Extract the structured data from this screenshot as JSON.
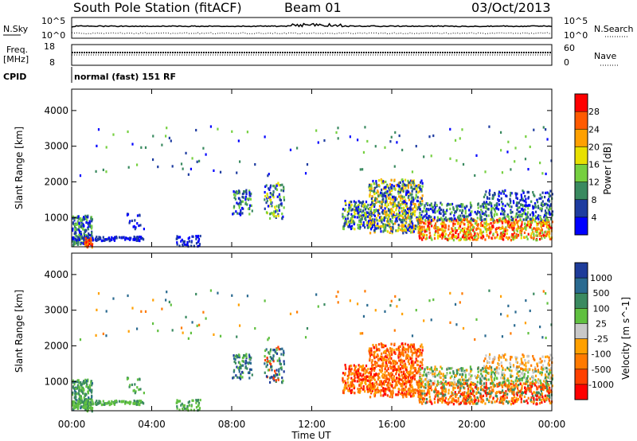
{
  "header": {
    "station": "South Pole Station (fitACF)",
    "beam": "Beam 01",
    "date": "03/Oct/2013"
  },
  "strips": {
    "nsky_label": "N.Sky",
    "nsky_ticks": [
      "10^5",
      "10^0"
    ],
    "nsearch_label": "N.Search",
    "nsearch_ticks": [
      "10^5",
      "10^0"
    ],
    "freq_label": "Freq.",
    "freq_unit": "[MHz]",
    "freq_ticks": [
      "18",
      "8"
    ],
    "nave_label": "Nave",
    "nave_ticks": [
      "60",
      "0"
    ],
    "cpid_label": "CPID",
    "cpid_value": "normal (fast) 151 RF"
  },
  "chart_data": [
    {
      "type": "heatmap",
      "parameter": "Power",
      "ylabel": "Slant Range [km]",
      "ylim": [
        180,
        4600
      ],
      "xlim": [
        0,
        24
      ],
      "yticks": [
        1000,
        2000,
        3000,
        4000
      ],
      "colorbar_label": "Power [dB]",
      "colorbar_ticks": [
        "28",
        "24",
        "20",
        "16",
        "12",
        "8",
        "4"
      ],
      "colorbar_colors": [
        "#ff0000",
        "#ff5a00",
        "#ffa000",
        "#e8e000",
        "#76d040",
        "#3a8a60",
        "#1e3ca0",
        "#0000ff"
      ]
    },
    {
      "type": "heatmap",
      "parameter": "Velocity",
      "ylabel": "Slant Range [km]",
      "ylim": [
        180,
        4600
      ],
      "xlim": [
        0,
        24
      ],
      "yticks": [
        1000,
        2000,
        3000,
        4000
      ],
      "colorbar_label": "Velocity [m s^-1]",
      "colorbar_ticks": [
        "1000",
        "500",
        "100",
        "25",
        "-25",
        "-100",
        "-500",
        "-1000"
      ],
      "colorbar_colors": [
        "#1e3c9a",
        "#2a6a90",
        "#3a8a60",
        "#60c040",
        "#c8c8c8",
        "#ffa000",
        "#ff7a00",
        "#ff4000",
        "#ff0000"
      ]
    }
  ],
  "xaxis": {
    "ticks": [
      "00:00",
      "04:00",
      "08:00",
      "12:00",
      "16:00",
      "20:00",
      "00:00"
    ],
    "label": "Time UT"
  }
}
